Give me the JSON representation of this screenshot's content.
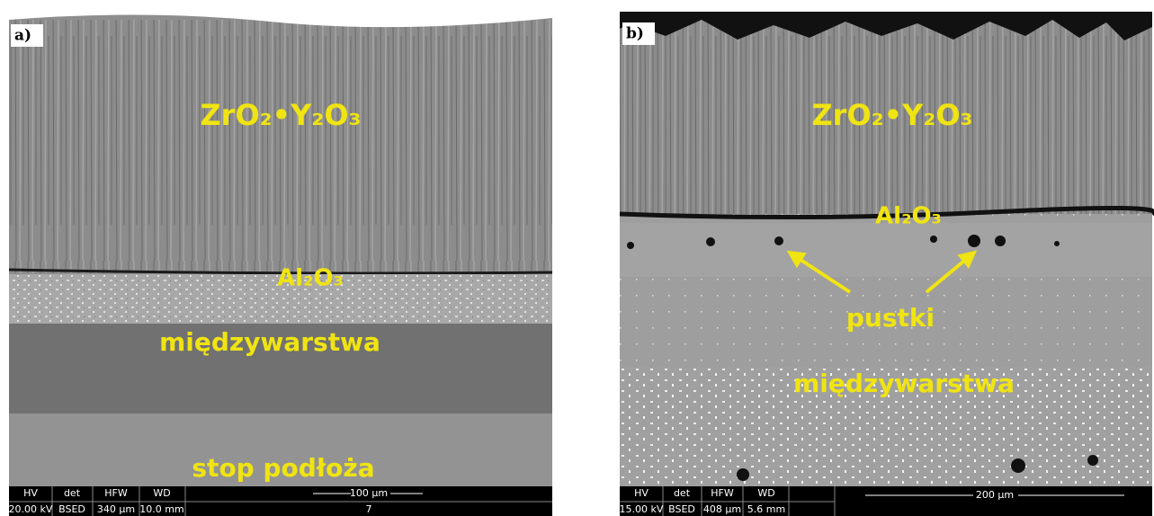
{
  "panels": [
    {
      "label": "a)",
      "annotations": [
        "ZrO₂•Y₂O₃",
        "Al₂O₃",
        "międzywarstwa",
        "stop podłoża"
      ],
      "info_bar": {
        "headers": [
          "HV",
          "det",
          "HFW",
          "WD"
        ],
        "values": [
          "20.00 kV",
          "BSED",
          "340 µm",
          "10.0 mm"
        ],
        "scale_bar": "100 µm",
        "extra": "7"
      }
    },
    {
      "label": "b)",
      "annotations": [
        "ZrO₂•Y₂O₃",
        "Al₂O₃",
        "pustki",
        "międzywarstwa"
      ],
      "info_bar": {
        "headers": [
          "HV",
          "det",
          "HFW",
          "WD"
        ],
        "values": [
          "15.00 kV",
          "BSED",
          "408 µm",
          "5.6 mm"
        ],
        "scale_bar": "200 µm"
      }
    }
  ]
}
